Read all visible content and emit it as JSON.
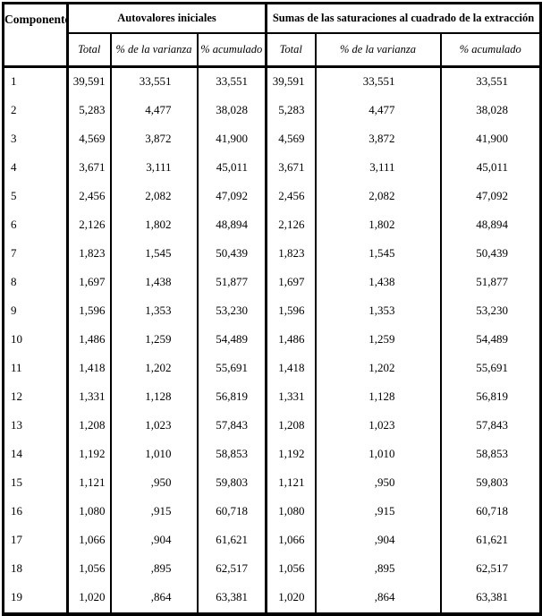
{
  "table": {
    "headers": {
      "component": "Componente",
      "section_initial": "Autovalores iniciales",
      "section_extraction": "Sumas de las saturaciones al cuadrado de la extracción",
      "sub_initial": [
        "Total",
        "% de la varianza",
        "% acumulado"
      ],
      "sub_extraction": [
        "Total",
        "% de la varianza",
        "% acumulado"
      ]
    },
    "rows": [
      {
        "component": "1",
        "initial": [
          "39,591",
          "33,551",
          "33,551"
        ],
        "extraction": [
          "39,591",
          "33,551",
          "33,551"
        ]
      },
      {
        "component": "2",
        "initial": [
          "5,283",
          "4,477",
          "38,028"
        ],
        "extraction": [
          "5,283",
          "4,477",
          "38,028"
        ]
      },
      {
        "component": "3",
        "initial": [
          "4,569",
          "3,872",
          "41,900"
        ],
        "extraction": [
          "4,569",
          "3,872",
          "41,900"
        ]
      },
      {
        "component": "4",
        "initial": [
          "3,671",
          "3,111",
          "45,011"
        ],
        "extraction": [
          "3,671",
          "3,111",
          "45,011"
        ]
      },
      {
        "component": "5",
        "initial": [
          "2,456",
          "2,082",
          "47,092"
        ],
        "extraction": [
          "2,456",
          "2,082",
          "47,092"
        ]
      },
      {
        "component": "6",
        "initial": [
          "2,126",
          "1,802",
          "48,894"
        ],
        "extraction": [
          "2,126",
          "1,802",
          "48,894"
        ]
      },
      {
        "component": "7",
        "initial": [
          "1,823",
          "1,545",
          "50,439"
        ],
        "extraction": [
          "1,823",
          "1,545",
          "50,439"
        ]
      },
      {
        "component": "8",
        "initial": [
          "1,697",
          "1,438",
          "51,877"
        ],
        "extraction": [
          "1,697",
          "1,438",
          "51,877"
        ]
      },
      {
        "component": "9",
        "initial": [
          "1,596",
          "1,353",
          "53,230"
        ],
        "extraction": [
          "1,596",
          "1,353",
          "53,230"
        ]
      },
      {
        "component": "10",
        "initial": [
          "1,486",
          "1,259",
          "54,489"
        ],
        "extraction": [
          "1,486",
          "1,259",
          "54,489"
        ]
      },
      {
        "component": "11",
        "initial": [
          "1,418",
          "1,202",
          "55,691"
        ],
        "extraction": [
          "1,418",
          "1,202",
          "55,691"
        ]
      },
      {
        "component": "12",
        "initial": [
          "1,331",
          "1,128",
          "56,819"
        ],
        "extraction": [
          "1,331",
          "1,128",
          "56,819"
        ]
      },
      {
        "component": "13",
        "initial": [
          "1,208",
          "1,023",
          "57,843"
        ],
        "extraction": [
          "1,208",
          "1,023",
          "57,843"
        ]
      },
      {
        "component": "14",
        "initial": [
          "1,192",
          "1,010",
          "58,853"
        ],
        "extraction": [
          "1,192",
          "1,010",
          "58,853"
        ]
      },
      {
        "component": "15",
        "initial": [
          "1,121",
          ",950",
          "59,803"
        ],
        "extraction": [
          "1,121",
          ",950",
          "59,803"
        ]
      },
      {
        "component": "16",
        "initial": [
          "1,080",
          ",915",
          "60,718"
        ],
        "extraction": [
          "1,080",
          ",915",
          "60,718"
        ]
      },
      {
        "component": "17",
        "initial": [
          "1,066",
          ",904",
          "61,621"
        ],
        "extraction": [
          "1,066",
          ",904",
          "61,621"
        ]
      },
      {
        "component": "18",
        "initial": [
          "1,056",
          ",895",
          "62,517"
        ],
        "extraction": [
          "1,056",
          ",895",
          "62,517"
        ]
      },
      {
        "component": "19",
        "initial": [
          "1,020",
          ",864",
          "63,381"
        ],
        "extraction": [
          "1,020",
          ",864",
          "63,381"
        ]
      }
    ],
    "colors": {
      "border": "#000000",
      "background": "#ffffff",
      "text": "#000000"
    }
  }
}
